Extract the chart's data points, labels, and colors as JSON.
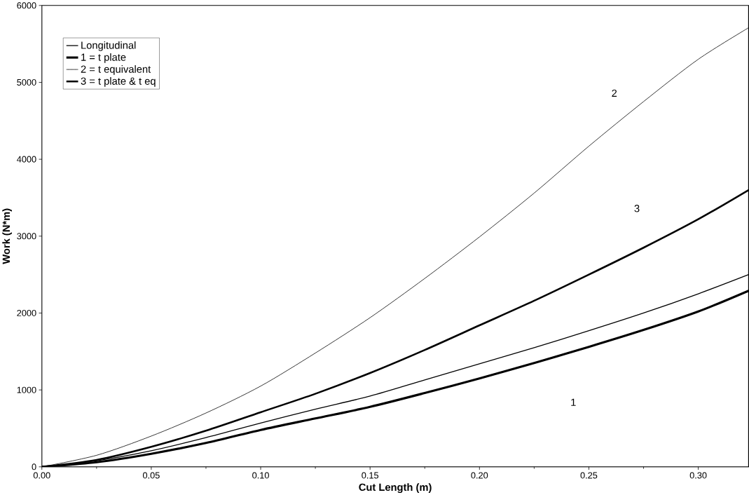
{
  "chart_data": {
    "type": "line",
    "xlabel": "Cut Length (m)",
    "ylabel": "Work (N*m)",
    "xlim": [
      0,
      0.323
    ],
    "ylim": [
      0,
      6000
    ],
    "xticks": [
      {
        "value": 0,
        "label": "0.00"
      },
      {
        "value": 0.05,
        "label": "0.05"
      },
      {
        "value": 0.1,
        "label": "0.10"
      },
      {
        "value": 0.15,
        "label": "0.15"
      },
      {
        "value": 0.2,
        "label": "0.20"
      },
      {
        "value": 0.25,
        "label": "0.25"
      },
      {
        "value": 0.3,
        "label": "0.30"
      }
    ],
    "yticks": [
      0,
      1000,
      2000,
      3000,
      4000,
      5000,
      6000
    ],
    "x": [
      0,
      0.025,
      0.05,
      0.075,
      0.1,
      0.125,
      0.15,
      0.175,
      0.2,
      0.225,
      0.25,
      0.275,
      0.3,
      0.323
    ],
    "series": [
      {
        "name": "Longitudinal",
        "color": "#000000",
        "values": [
          0,
          80,
          210,
          380,
          570,
          750,
          920,
          1130,
          1340,
          1550,
          1770,
          2000,
          2250,
          2500
        ]
      },
      {
        "name": "1 = t plate",
        "color": "#000000",
        "values": [
          0,
          60,
          170,
          310,
          480,
          630,
          780,
          960,
          1150,
          1350,
          1560,
          1780,
          2020,
          2290
        ]
      },
      {
        "name": "2 = t equivalent",
        "color": "#000000",
        "values": [
          0,
          150,
          400,
          700,
          1050,
          1480,
          1940,
          2450,
          2990,
          3560,
          4170,
          4750,
          5300,
          5710
        ]
      },
      {
        "name": "3 = t plate & t eq",
        "color": "#000000",
        "values": [
          0,
          90,
          260,
          470,
          710,
          950,
          1220,
          1520,
          1840,
          2160,
          2500,
          2850,
          3220,
          3600
        ]
      }
    ],
    "annotations": [
      "2",
      "3",
      "1"
    ],
    "legend": "top left",
    "grid": false,
    "marker": "none",
    "line_style": "solid"
  }
}
